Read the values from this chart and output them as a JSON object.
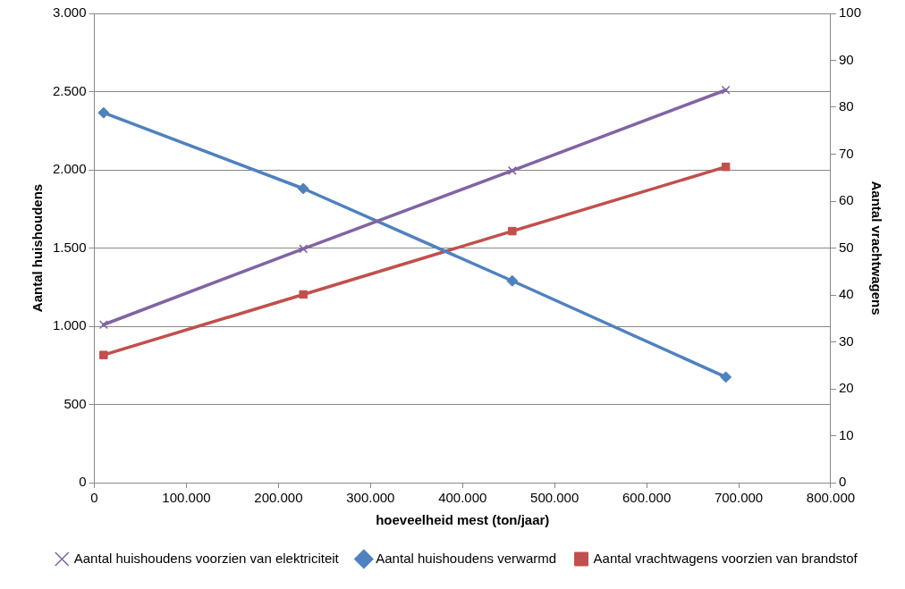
{
  "chart_data": {
    "type": "line",
    "xlabel": "hoeveelheid mest (ton/jaar)",
    "ylabel": "Aantal huishoudens",
    "y2label": "Aantal vrachtwagens",
    "x": [
      10000,
      227000,
      454000,
      686000
    ],
    "series": [
      {
        "name": "Aantal huishoudens voorzien van elektriciteit",
        "color": "#8064a2",
        "marker": "cross",
        "values": [
          1010,
          1495,
          1995,
          2510
        ]
      },
      {
        "name": "Aantal huishoudens verwarmd",
        "color": "#4f81bd",
        "marker": "diamond",
        "values": [
          2365,
          1880,
          1290,
          675
        ]
      },
      {
        "name": "Aantal vrachtwagens voorzien van brandstof",
        "color": "#c0504d",
        "marker": "square",
        "axis": "y2",
        "values": [
          27.2,
          40.1,
          53.6,
          67.3
        ]
      }
    ],
    "xlim": [
      0,
      800000
    ],
    "xticks": [
      0,
      {
        "value": 100000,
        "label": "100.000"
      },
      {
        "value": 200000,
        "label": "200.000"
      },
      {
        "value": 300000,
        "label": "300.000"
      },
      {
        "value": 400000,
        "label": "400.000"
      },
      {
        "value": 500000,
        "label": "500.000"
      },
      {
        "value": 600000,
        "label": "600.000"
      },
      {
        "value": 700000,
        "label": "700.000"
      },
      {
        "value": 800000,
        "label": "800.000"
      }
    ],
    "ylim": [
      0,
      3000
    ],
    "yticks": [
      0,
      500,
      {
        "value": 1000,
        "label": "1.000"
      },
      {
        "value": 1500,
        "label": "1.500"
      },
      {
        "value": 2000,
        "label": "2.000"
      },
      {
        "value": 2500,
        "label": "2.500"
      },
      {
        "value": 3000,
        "label": "3.000"
      }
    ],
    "y2lim": [
      0,
      100
    ],
    "y2ticks": [
      0,
      10,
      20,
      30,
      40,
      50,
      60,
      70,
      80,
      90,
      100
    ],
    "grid": "y",
    "legend": "bottom",
    "line_style": "solid"
  }
}
